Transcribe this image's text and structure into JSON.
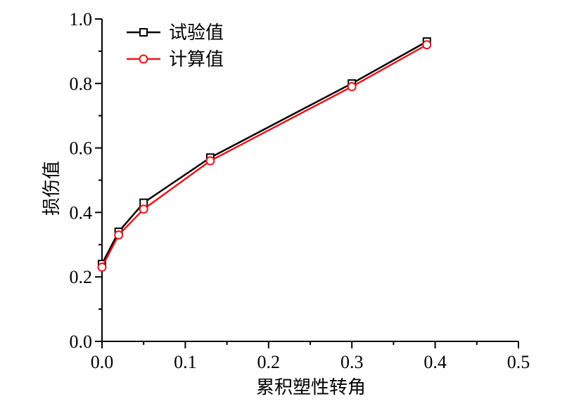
{
  "chart_data": {
    "type": "line",
    "title": "",
    "xlabel": "累积塑性转角",
    "ylabel": "损伤值",
    "xlim": [
      0,
      0.5
    ],
    "ylim": [
      0,
      1.0
    ],
    "x_ticks": [
      "0.0",
      "0.1",
      "0.2",
      "0.3",
      "0.4",
      "0.5"
    ],
    "y_ticks": [
      "0.0",
      "0.2",
      "0.4",
      "0.6",
      "0.8",
      "1.0"
    ],
    "grid": false,
    "legend_position": "top-left",
    "series": [
      {
        "name": "试验值",
        "color": "#000000",
        "marker": "square",
        "x": [
          0.0,
          0.02,
          0.05,
          0.13,
          0.3,
          0.39
        ],
        "y": [
          0.24,
          0.34,
          0.43,
          0.57,
          0.8,
          0.93
        ]
      },
      {
        "name": "计算值",
        "color": "#e8141b",
        "marker": "circle",
        "x": [
          0.0,
          0.02,
          0.05,
          0.13,
          0.3,
          0.39
        ],
        "y": [
          0.23,
          0.33,
          0.41,
          0.56,
          0.79,
          0.92
        ]
      }
    ]
  }
}
